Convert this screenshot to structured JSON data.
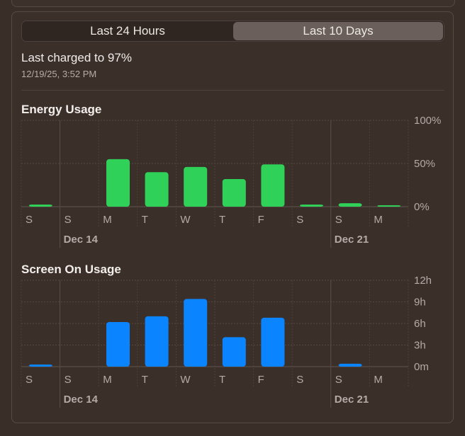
{
  "tabs": [
    {
      "label": "Last 24 Hours",
      "selected": false
    },
    {
      "label": "Last 10 Days",
      "selected": true
    }
  ],
  "battery": {
    "last_charged": "Last charged to 97%",
    "timestamp": "12/19/25, 3:52 PM"
  },
  "colors": {
    "energy_bar": "#30d158",
    "screen_bar": "#0a84ff"
  },
  "chart_data": [
    {
      "type": "bar",
      "title": "Energy Usage",
      "categories": [
        "S",
        "S",
        "M",
        "T",
        "W",
        "T",
        "F",
        "S",
        "S",
        "M"
      ],
      "date_labels": [
        {
          "label": "Dec 14",
          "index": 1
        },
        {
          "label": "Dec 21",
          "index": 8
        }
      ],
      "values": [
        2.5,
        0,
        55,
        40,
        46,
        32,
        49,
        2.5,
        4,
        1
      ],
      "y_ticks": [
        "100%",
        "50%",
        "0%"
      ],
      "ylim": [
        0,
        100
      ],
      "unit": "%"
    },
    {
      "type": "bar",
      "title": "Screen On Usage",
      "categories": [
        "S",
        "S",
        "M",
        "T",
        "W",
        "T",
        "F",
        "S",
        "S",
        "M"
      ],
      "date_labels": [
        {
          "label": "Dec 14",
          "index": 1
        },
        {
          "label": "Dec 21",
          "index": 8
        }
      ],
      "values": [
        0.3,
        0,
        6.2,
        7.0,
        9.4,
        4.1,
        6.8,
        0,
        0.4,
        0
      ],
      "y_ticks": [
        "12h",
        "9h",
        "6h",
        "3h",
        "0m"
      ],
      "ylim": [
        0,
        12
      ],
      "unit": "h"
    }
  ]
}
